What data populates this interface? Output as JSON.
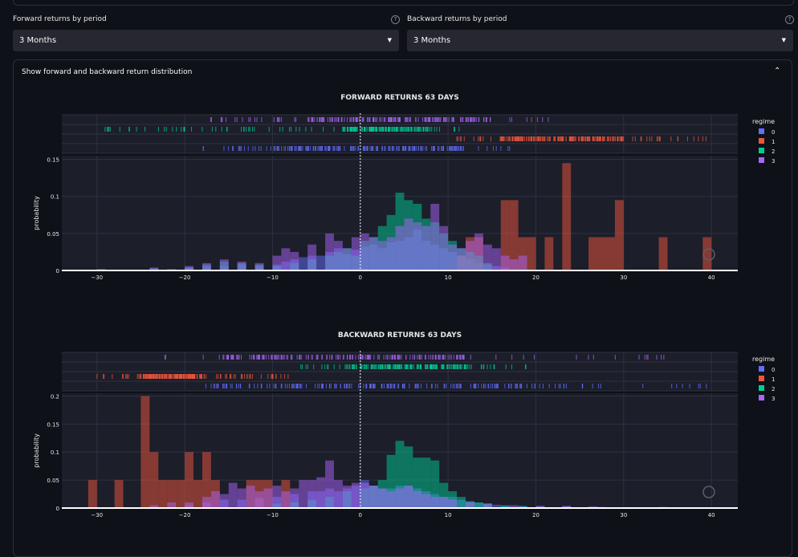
{
  "forward": {
    "label": "Forward returns by period",
    "value": "3 Months",
    "help": "?"
  },
  "backward": {
    "label": "Backward returns by period",
    "value": "3 Months",
    "help": "?"
  },
  "expander": {
    "title": "Show forward and backward return distribution",
    "chevron": "^"
  },
  "colors": {
    "0": "#636efa",
    "1": "#ef553b",
    "2": "#00cc96",
    "3": "#ab63fa"
  },
  "chart_data": [
    {
      "type": "histogram",
      "title": "FORWARD RETURNS 63 DAYS",
      "ylabel": "probability",
      "xlim": [
        -34,
        43
      ],
      "ylim": [
        0,
        0.155
      ],
      "xticks": [
        -30,
        -20,
        -10,
        0,
        10,
        20,
        30,
        40
      ],
      "yticks": [
        0,
        0.05,
        0.1,
        0.15
      ],
      "ytick_labels": [
        "0",
        "0.05",
        "0.1",
        "0.15"
      ],
      "legend_title": "regime",
      "legend": [
        "0",
        "1",
        "2",
        "3"
      ],
      "series": [
        {
          "name": "0",
          "bins": [
            [
              -22,
              0.002
            ],
            [
              -20,
              0.004
            ],
            [
              -18,
              0.005
            ],
            [
              -16,
              0.006
            ],
            [
              -14,
              0.008
            ],
            [
              -12,
              0.006
            ],
            [
              -10,
              0.008
            ],
            [
              -9,
              0.012
            ],
            [
              -8,
              0.015
            ],
            [
              -7,
              0.018
            ],
            [
              -6,
              0.02
            ],
            [
              -5,
              0.02
            ],
            [
              -4,
              0.025
            ],
            [
              -3,
              0.03
            ],
            [
              -2,
              0.022
            ],
            [
              -1,
              0.028
            ],
            [
              0,
              0.032
            ],
            [
              1,
              0.035
            ],
            [
              2,
              0.03
            ],
            [
              3,
              0.038
            ],
            [
              4,
              0.04
            ],
            [
              5,
              0.045
            ],
            [
              6,
              0.055
            ],
            [
              7,
              0.04
            ],
            [
              8,
              0.035
            ],
            [
              9,
              0.03
            ],
            [
              10,
              0.025
            ],
            [
              11,
              0.02
            ],
            [
              12,
              0.015
            ],
            [
              13,
              0.01
            ],
            [
              14,
              0.008
            ],
            [
              15,
              0.006
            ],
            [
              16,
              0.004
            ]
          ]
        },
        {
          "name": "1",
          "bins": [
            [
              11,
              0.02
            ],
            [
              12,
              0.045
            ],
            [
              13,
              0.045
            ],
            [
              16,
              0.095
            ],
            [
              17,
              0.095
            ],
            [
              18,
              0.045
            ],
            [
              19,
              0.045
            ],
            [
              21,
              0.045
            ],
            [
              23,
              0.145
            ],
            [
              26,
              0.045
            ],
            [
              27,
              0.045
            ],
            [
              28,
              0.045
            ],
            [
              29,
              0.095
            ],
            [
              34,
              0.045
            ],
            [
              39,
              0.045
            ]
          ]
        },
        {
          "name": "2",
          "bins": [
            [
              -30,
              0.002
            ],
            [
              -24,
              0.003
            ],
            [
              -20,
              0.004
            ],
            [
              -18,
              0.008
            ],
            [
              -16,
              0.012
            ],
            [
              -14,
              0.01
            ],
            [
              -12,
              0.008
            ],
            [
              -10,
              0.006
            ],
            [
              -8,
              0.01
            ],
            [
              -6,
              0.015
            ],
            [
              -4,
              0.02
            ],
            [
              -3,
              0.025
            ],
            [
              -2,
              0.03
            ],
            [
              -1,
              0.02
            ],
            [
              0,
              0.04
            ],
            [
              1,
              0.045
            ],
            [
              2,
              0.06
            ],
            [
              3,
              0.075
            ],
            [
              4,
              0.105
            ],
            [
              5,
              0.095
            ],
            [
              6,
              0.09
            ],
            [
              7,
              0.07
            ],
            [
              8,
              0.065
            ],
            [
              9,
              0.05
            ],
            [
              10,
              0.04
            ],
            [
              11,
              0.03
            ],
            [
              12,
              0.025
            ],
            [
              13,
              0.02
            ],
            [
              14,
              0.01
            ]
          ]
        },
        {
          "name": "3",
          "bins": [
            [
              -24,
              0.004
            ],
            [
              -20,
              0.006
            ],
            [
              -18,
              0.01
            ],
            [
              -16,
              0.015
            ],
            [
              -14,
              0.012
            ],
            [
              -12,
              0.01
            ],
            [
              -10,
              0.02
            ],
            [
              -9,
              0.03
            ],
            [
              -8,
              0.025
            ],
            [
              -6,
              0.035
            ],
            [
              -4,
              0.05
            ],
            [
              -3,
              0.04
            ],
            [
              -2,
              0.03
            ],
            [
              -1,
              0.045
            ],
            [
              0,
              0.05
            ],
            [
              1,
              0.045
            ],
            [
              2,
              0.04
            ],
            [
              3,
              0.045
            ],
            [
              4,
              0.06
            ],
            [
              5,
              0.07
            ],
            [
              6,
              0.065
            ],
            [
              7,
              0.06
            ],
            [
              8,
              0.09
            ],
            [
              9,
              0.06
            ],
            [
              10,
              0.035
            ],
            [
              11,
              0.03
            ],
            [
              12,
              0.04
            ],
            [
              13,
              0.05
            ],
            [
              14,
              0.035
            ],
            [
              15,
              0.03
            ],
            [
              16,
              0.02
            ],
            [
              17,
              0.015
            ],
            [
              18,
              0.02
            ]
          ]
        }
      ],
      "rugs": [
        {
          "name": "3",
          "range": [
            -19,
            22
          ],
          "dense": [
            -6,
            15
          ]
        },
        {
          "name": "2",
          "range": [
            -30,
            13
          ],
          "dense": [
            -2,
            8
          ]
        },
        {
          "name": "1",
          "range": [
            11,
            40
          ],
          "dense": [
            16,
            30
          ]
        },
        {
          "name": "0",
          "range": [
            -18,
            18
          ],
          "dense": [
            -10,
            12
          ]
        }
      ]
    },
    {
      "type": "histogram",
      "title": "BACKWARD RETURNS 63 DAYS",
      "ylabel": "probability",
      "xlim": [
        -34,
        43
      ],
      "ylim": [
        0,
        0.205
      ],
      "xticks": [
        -30,
        -20,
        -10,
        0,
        10,
        20,
        30,
        40
      ],
      "yticks": [
        0,
        0.05,
        0.1,
        0.15,
        0.2
      ],
      "ytick_labels": [
        "0",
        "0.05",
        "0.1",
        "0.15",
        "0.2"
      ],
      "legend_title": "regime",
      "legend": [
        "0",
        "1",
        "2",
        "3"
      ],
      "series": [
        {
          "name": "0",
          "bins": [
            [
              -20,
              0.005
            ],
            [
              -18,
              0.01
            ],
            [
              -16,
              0.015
            ],
            [
              -14,
              0.015
            ],
            [
              -12,
              0.018
            ],
            [
              -10,
              0.02
            ],
            [
              -8,
              0.025
            ],
            [
              -6,
              0.03
            ],
            [
              -5,
              0.03
            ],
            [
              -4,
              0.035
            ],
            [
              -3,
              0.03
            ],
            [
              -2,
              0.035
            ],
            [
              -1,
              0.04
            ],
            [
              0,
              0.05
            ],
            [
              1,
              0.04
            ],
            [
              2,
              0.035
            ],
            [
              3,
              0.035
            ],
            [
              4,
              0.04
            ],
            [
              5,
              0.04
            ],
            [
              6,
              0.035
            ],
            [
              7,
              0.03
            ],
            [
              8,
              0.025
            ],
            [
              9,
              0.02
            ],
            [
              10,
              0.02
            ],
            [
              11,
              0.015
            ],
            [
              12,
              0.012
            ],
            [
              13,
              0.01
            ],
            [
              14,
              0.008
            ],
            [
              15,
              0.006
            ],
            [
              16,
              0.005
            ],
            [
              18,
              0.004
            ],
            [
              20,
              0.003
            ],
            [
              23,
              0.003
            ],
            [
              27,
              0.002
            ],
            [
              34,
              0.002
            ]
          ]
        },
        {
          "name": "1",
          "bins": [
            [
              -31,
              0.05
            ],
            [
              -28,
              0.05
            ],
            [
              -25,
              0.2
            ],
            [
              -24,
              0.1
            ],
            [
              -23,
              0.05
            ],
            [
              -22,
              0.05
            ],
            [
              -21,
              0.05
            ],
            [
              -20,
              0.1
            ],
            [
              -19,
              0.05
            ],
            [
              -18,
              0.1
            ],
            [
              -17,
              0.05
            ],
            [
              -13,
              0.05
            ],
            [
              -12,
              0.05
            ],
            [
              -11,
              0.05
            ],
            [
              -9,
              0.05
            ]
          ]
        },
        {
          "name": "2",
          "bins": [
            [
              -10,
              0.008
            ],
            [
              -8,
              0.01
            ],
            [
              -6,
              0.015
            ],
            [
              -4,
              0.02
            ],
            [
              -2,
              0.03
            ],
            [
              0,
              0.035
            ],
            [
              1,
              0.04
            ],
            [
              2,
              0.05
            ],
            [
              3,
              0.095
            ],
            [
              4,
              0.12
            ],
            [
              5,
              0.11
            ],
            [
              6,
              0.09
            ],
            [
              7,
              0.09
            ],
            [
              8,
              0.085
            ],
            [
              9,
              0.045
            ],
            [
              10,
              0.03
            ],
            [
              11,
              0.02
            ],
            [
              12,
              0.012
            ],
            [
              13,
              0.01
            ],
            [
              14,
              0.008
            ],
            [
              16,
              0.004
            ],
            [
              18,
              0.003
            ]
          ]
        },
        {
          "name": "3",
          "bins": [
            [
              -24,
              0.005
            ],
            [
              -22,
              0.01
            ],
            [
              -20,
              0.01
            ],
            [
              -18,
              0.02
            ],
            [
              -17,
              0.03
            ],
            [
              -16,
              0.025
            ],
            [
              -15,
              0.045
            ],
            [
              -14,
              0.035
            ],
            [
              -13,
              0.04
            ],
            [
              -12,
              0.03
            ],
            [
              -11,
              0.035
            ],
            [
              -10,
              0.04
            ],
            [
              -9,
              0.03
            ],
            [
              -8,
              0.035
            ],
            [
              -7,
              0.05
            ],
            [
              -6,
              0.05
            ],
            [
              -5,
              0.055
            ],
            [
              -4,
              0.085
            ],
            [
              -3,
              0.05
            ],
            [
              -2,
              0.04
            ],
            [
              -1,
              0.045
            ],
            [
              0,
              0.045
            ],
            [
              1,
              0.04
            ],
            [
              2,
              0.035
            ],
            [
              3,
              0.03
            ],
            [
              4,
              0.035
            ],
            [
              5,
              0.04
            ],
            [
              6,
              0.03
            ],
            [
              7,
              0.025
            ],
            [
              8,
              0.02
            ],
            [
              9,
              0.02
            ],
            [
              10,
              0.015
            ],
            [
              12,
              0.01
            ],
            [
              14,
              0.008
            ],
            [
              17,
              0.005
            ],
            [
              20,
              0.004
            ],
            [
              23,
              0.004
            ],
            [
              26,
              0.003
            ]
          ]
        }
      ],
      "rugs": [
        {
          "name": "3",
          "range": [
            -23,
            35
          ],
          "dense": [
            -16,
            12
          ]
        },
        {
          "name": "2",
          "range": [
            -7,
            19
          ],
          "dense": [
            -1,
            12
          ]
        },
        {
          "name": "1",
          "range": [
            -30,
            -8
          ],
          "dense": [
            -25,
            -18
          ]
        },
        {
          "name": "0",
          "range": [
            -18,
            40
          ],
          "dense": [
            -17,
            20
          ]
        }
      ]
    }
  ]
}
